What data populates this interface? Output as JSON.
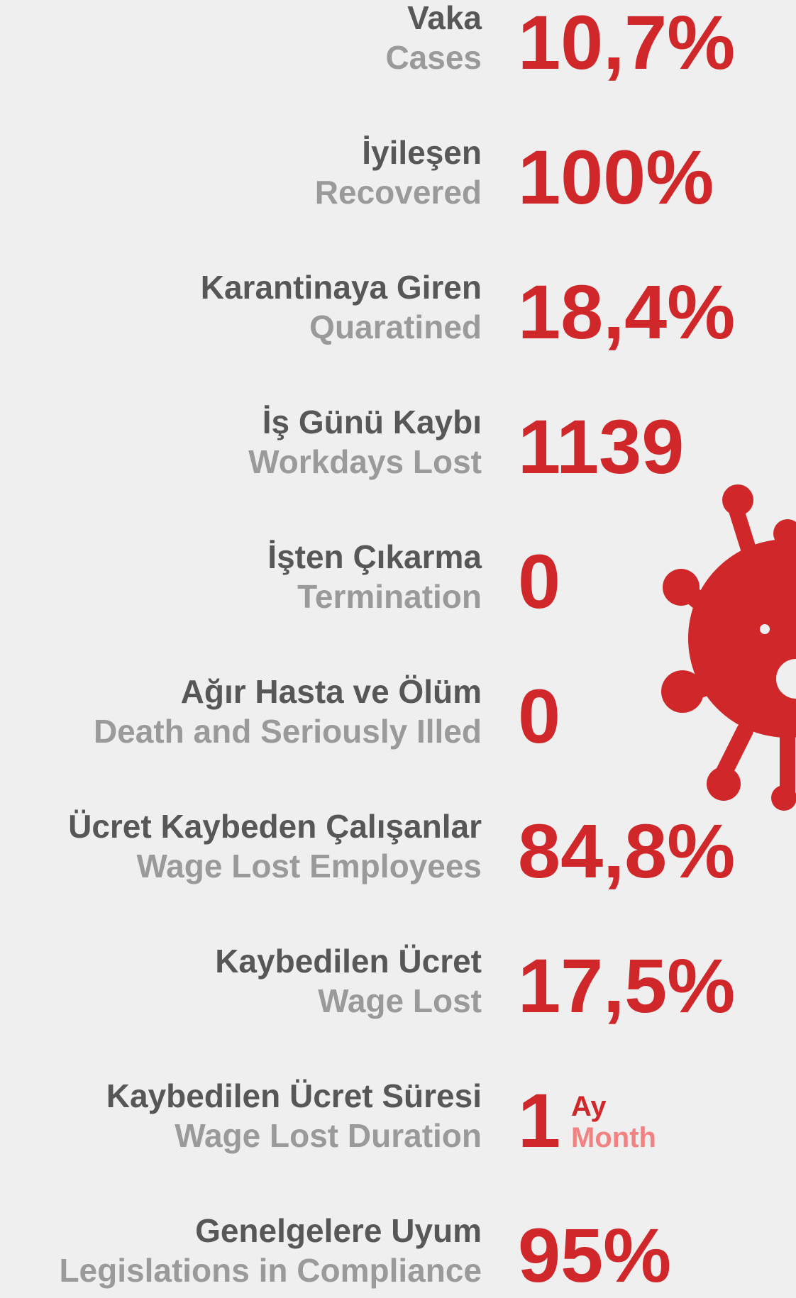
{
  "items": [
    {
      "tr": "Vaka",
      "en": "Cases",
      "value": "10,7%"
    },
    {
      "tr": "İyileşen",
      "en": "Recovered",
      "value": "100%"
    },
    {
      "tr": "Karantinaya Giren",
      "en": "Quaratined",
      "value": "18,4%"
    },
    {
      "tr": "İş Günü Kaybı",
      "en": "Workdays Lost",
      "value": "1139"
    },
    {
      "tr": "İşten Çıkarma",
      "en": "Termination",
      "value": "0"
    },
    {
      "tr": "Ağır Hasta ve Ölüm",
      "en": "Death and Seriously Illed",
      "value": "0"
    },
    {
      "tr": "Ücret Kaybeden Çalışanlar",
      "en": "Wage Lost Employees",
      "value": "84,8%"
    },
    {
      "tr": "Kaybedilen Ücret",
      "en": "Wage Lost",
      "value": "17,5%"
    },
    {
      "tr": "Kaybedilen Ücret Süresi",
      "en": "Wage Lost Duration",
      "value": "1",
      "unit_tr": "Ay",
      "unit_en": "Month"
    },
    {
      "tr": "Genelgelere Uyum",
      "en": "Legislations in Compliance",
      "value": "95%"
    }
  ]
}
